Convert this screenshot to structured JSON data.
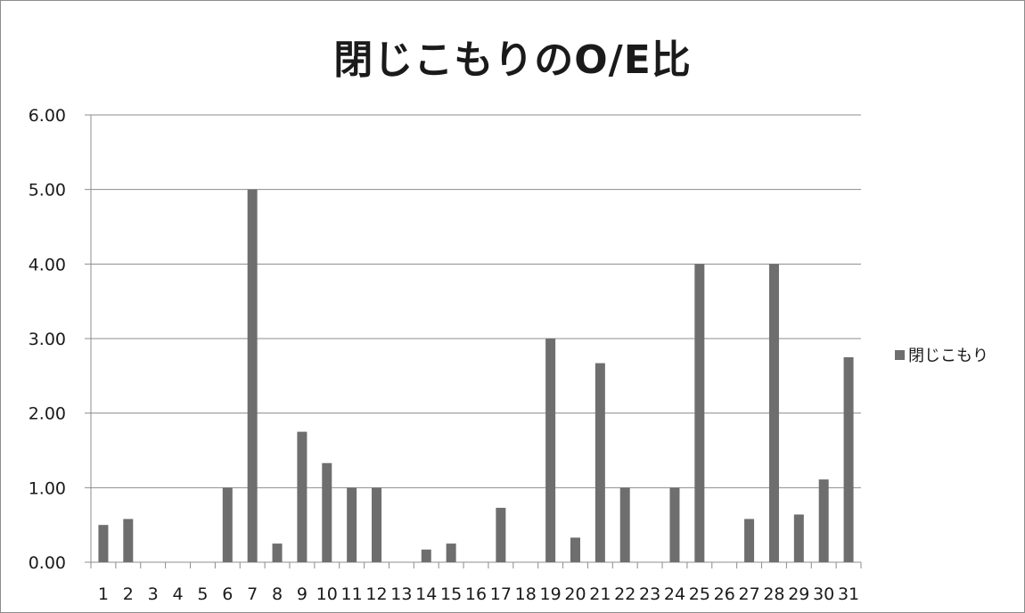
{
  "chart_data": {
    "type": "bar",
    "title": "閉じこもりのO/E比",
    "xlabel": "",
    "ylabel": "",
    "ylim": [
      0,
      6
    ],
    "yticks": [
      "0.00",
      "1.00",
      "2.00",
      "3.00",
      "4.00",
      "5.00",
      "6.00"
    ],
    "categories": [
      "1",
      "2",
      "3",
      "4",
      "5",
      "6",
      "7",
      "8",
      "9",
      "10",
      "11",
      "12",
      "13",
      "14",
      "15",
      "16",
      "17",
      "18",
      "19",
      "20",
      "21",
      "22",
      "23",
      "24",
      "25",
      "26",
      "27",
      "28",
      "29",
      "30",
      "31"
    ],
    "series": [
      {
        "name": "閉じこもり",
        "values": [
          0.5,
          0.58,
          0,
          0,
          0,
          1.0,
          5.0,
          0.25,
          1.75,
          1.33,
          1.0,
          1.0,
          0,
          0.17,
          0.25,
          0,
          0.73,
          0,
          3.0,
          0.33,
          2.67,
          1.0,
          0,
          1.0,
          4.0,
          0,
          0.58,
          4.0,
          0.64,
          1.11,
          2.75
        ]
      }
    ],
    "grid": true,
    "legend_position": "right",
    "bar_color": "#6e6e6e",
    "grid_color": "#8c8c8c",
    "axis_color": "#8c8c8c"
  }
}
